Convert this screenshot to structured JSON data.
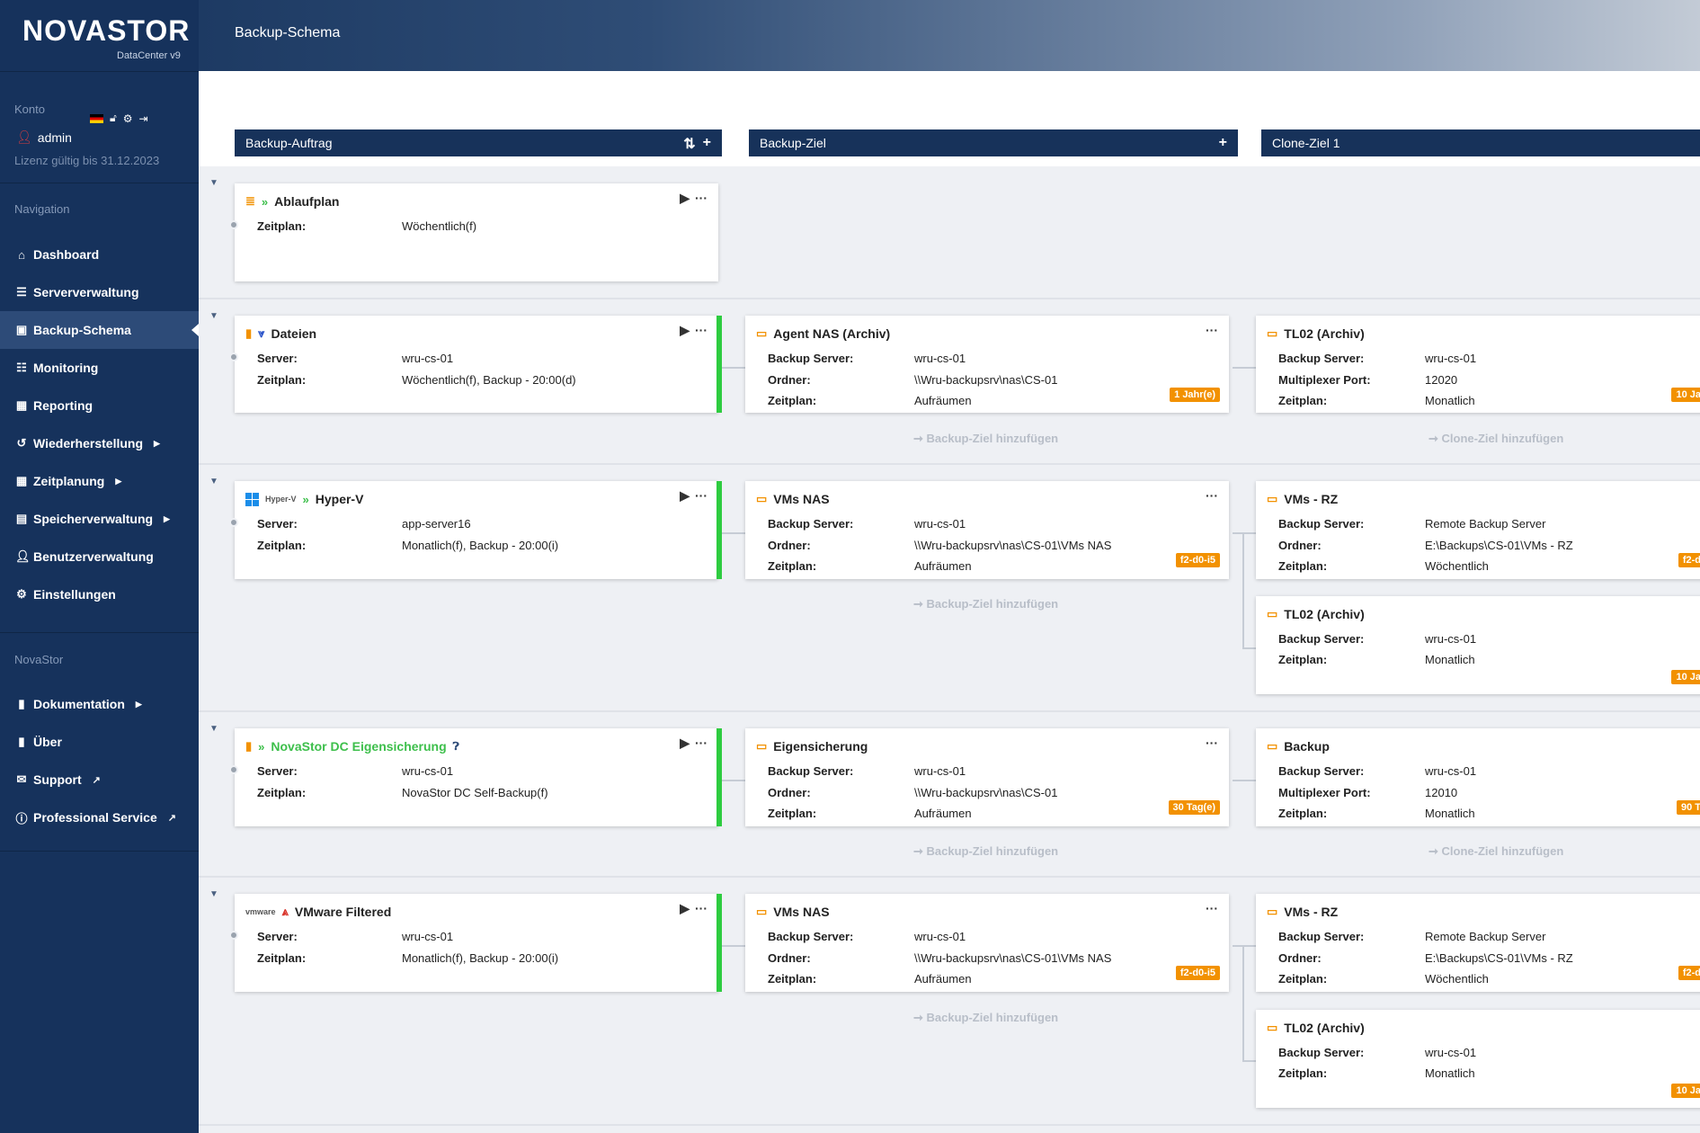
{
  "app": {
    "logo": "NOVASTOR",
    "logo_sub": "DataCenter v9",
    "page_title": "Backup-Schema"
  },
  "account": {
    "section": "Konto",
    "user": "admin",
    "license": "Lizenz gültig bis 31.12.2023"
  },
  "navigation": {
    "section": "Navigation",
    "items": [
      {
        "label": "Dashboard",
        "icon": "home-icon"
      },
      {
        "label": "Serververwaltung",
        "icon": "server-icon"
      },
      {
        "label": "Backup-Schema",
        "icon": "schema-icon",
        "active": true
      },
      {
        "label": "Monitoring",
        "icon": "list-icon"
      },
      {
        "label": "Reporting",
        "icon": "calendar-icon"
      },
      {
        "label": "Wiederherstellung",
        "icon": "undo-icon",
        "submenu": true
      },
      {
        "label": "Zeitplanung",
        "icon": "calendar-icon",
        "submenu": true
      },
      {
        "label": "Speicherverwaltung",
        "icon": "storage-icon",
        "submenu": true
      },
      {
        "label": "Benutzerverwaltung",
        "icon": "user-icon"
      },
      {
        "label": "Einstellungen",
        "icon": "gear-icon"
      }
    ]
  },
  "novastor": {
    "section": "NovaStor",
    "items": [
      {
        "label": "Dokumentation",
        "icon": "book-icon",
        "submenu": true
      },
      {
        "label": "Über",
        "icon": "book-icon"
      },
      {
        "label": "Support",
        "icon": "mail-icon",
        "external": true
      },
      {
        "label": "Professional Service",
        "icon": "info-icon",
        "external": true
      }
    ]
  },
  "columns": {
    "job": "Backup-Auftrag",
    "dest": "Backup-Ziel",
    "clone": "Clone-Ziel 1"
  },
  "labels": {
    "add_dest": "➞ Backup-Ziel hinzufügen",
    "add_clone": "➞ Clone-Ziel hinzufügen"
  },
  "rows": [
    {
      "job": {
        "title": "Ablaufplan",
        "fields": [
          {
            "k": "Zeitplan:",
            "v": "Wöchentlich(f)"
          }
        ]
      }
    },
    {
      "job": {
        "title": "Dateien",
        "fields": [
          {
            "k": "Server:",
            "v": "wru-cs-01"
          },
          {
            "k": "Zeitplan:",
            "v": "Wöchentlich(f), Backup - 20:00(d)"
          }
        ]
      },
      "dest": {
        "title": "Agent NAS (Archiv)",
        "fields": [
          {
            "k": "Backup Server:",
            "v": "wru-cs-01"
          },
          {
            "k": "Ordner:",
            "v": "\\\\Wru-backupsrv\\nas\\CS-01"
          },
          {
            "k": "Zeitplan:",
            "v": "Aufräumen"
          }
        ],
        "badge": "1 Jahr(e)"
      },
      "clones": [
        {
          "title": "TL02 (Archiv)",
          "fields": [
            {
              "k": "Backup Server:",
              "v": "wru-cs-01"
            },
            {
              "k": "Multiplexer Port:",
              "v": "12020"
            },
            {
              "k": "Zeitplan:",
              "v": "Monatlich"
            }
          ],
          "badge": "10 Ja"
        }
      ]
    },
    {
      "job": {
        "title": "Hyper-V",
        "brand": "Hyper-V",
        "fields": [
          {
            "k": "Server:",
            "v": "app-server16"
          },
          {
            "k": "Zeitplan:",
            "v": "Monatlich(f), Backup - 20:00(i)"
          }
        ]
      },
      "dest": {
        "title": "VMs NAS",
        "fields": [
          {
            "k": "Backup Server:",
            "v": "wru-cs-01"
          },
          {
            "k": "Ordner:",
            "v": "\\\\Wru-backupsrv\\nas\\CS-01\\VMs NAS"
          },
          {
            "k": "Zeitplan:",
            "v": "Aufräumen"
          }
        ],
        "badge": "f2-d0-i5"
      },
      "clones": [
        {
          "title": "VMs - RZ",
          "fields": [
            {
              "k": "Backup Server:",
              "v": "Remote Backup Server"
            },
            {
              "k": "Ordner:",
              "v": "E:\\Backups\\CS-01\\VMs - RZ"
            },
            {
              "k": "Zeitplan:",
              "v": "Wöchentlich"
            }
          ],
          "badge": "f2-d"
        },
        {
          "title": "TL02 (Archiv)",
          "fields": [
            {
              "k": "Backup Server:",
              "v": "wru-cs-01"
            },
            {
              "k": "Zeitplan:",
              "v": "Monatlich"
            }
          ],
          "badge": "10 Ja"
        }
      ]
    },
    {
      "job": {
        "title": "NovaStor DC Eigensicherung",
        "fields": [
          {
            "k": "Server:",
            "v": "wru-cs-01"
          },
          {
            "k": "Zeitplan:",
            "v": "NovaStor DC Self-Backup(f)"
          }
        ]
      },
      "dest": {
        "title": "Eigensicherung",
        "fields": [
          {
            "k": "Backup Server:",
            "v": "wru-cs-01"
          },
          {
            "k": "Ordner:",
            "v": "\\\\Wru-backupsrv\\nas\\CS-01"
          },
          {
            "k": "Zeitplan:",
            "v": "Aufräumen"
          }
        ],
        "badge": "30 Tag(e)"
      },
      "clones": [
        {
          "title": "Backup",
          "fields": [
            {
              "k": "Backup Server:",
              "v": "wru-cs-01"
            },
            {
              "k": "Multiplexer Port:",
              "v": "12010"
            },
            {
              "k": "Zeitplan:",
              "v": "Monatlich"
            }
          ],
          "badge": "90 T"
        }
      ]
    },
    {
      "job": {
        "title": "VMware Filtered",
        "brand": "vmware",
        "fields": [
          {
            "k": "Server:",
            "v": "wru-cs-01"
          },
          {
            "k": "Zeitplan:",
            "v": "Monatlich(f), Backup - 20:00(i)"
          }
        ]
      },
      "dest": {
        "title": "VMs NAS",
        "fields": [
          {
            "k": "Backup Server:",
            "v": "wru-cs-01"
          },
          {
            "k": "Ordner:",
            "v": "\\\\Wru-backupsrv\\nas\\CS-01\\VMs NAS"
          },
          {
            "k": "Zeitplan:",
            "v": "Aufräumen"
          }
        ],
        "badge": "f2-d0-i5"
      },
      "clones": [
        {
          "title": "VMs - RZ",
          "fields": [
            {
              "k": "Backup Server:",
              "v": "Remote Backup Server"
            },
            {
              "k": "Ordner:",
              "v": "E:\\Backups\\CS-01\\VMs - RZ"
            },
            {
              "k": "Zeitplan:",
              "v": "Wöchentlich"
            }
          ],
          "badge": "f2-d"
        },
        {
          "title": "TL02 (Archiv)",
          "fields": [
            {
              "k": "Backup Server:",
              "v": "wru-cs-01"
            },
            {
              "k": "Zeitplan:",
              "v": "Monatlich"
            }
          ],
          "badge": "10 Ja"
        }
      ]
    }
  ]
}
